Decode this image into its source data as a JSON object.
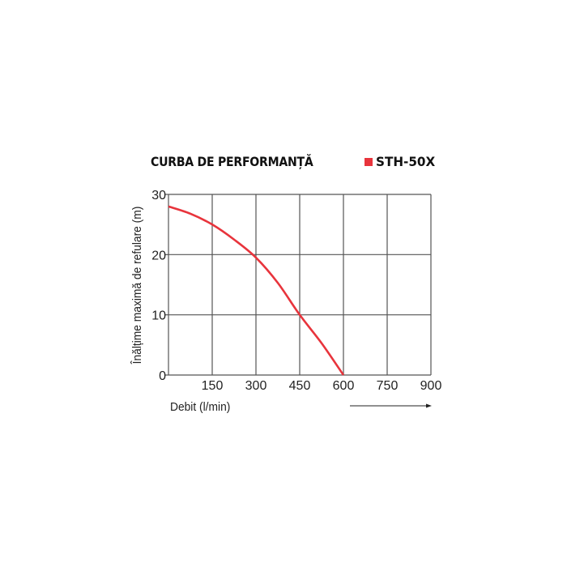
{
  "title": "CURBA DE PERFORMANȚĂ",
  "legend": {
    "label": "STH-50X",
    "color": "#e8343c"
  },
  "chart_data": {
    "type": "line",
    "title": "CURBA DE PERFORMANȚĂ",
    "xlabel": "Debit (l/min)",
    "ylabel": "Înălțime maximă de refulare (m)",
    "xlim": [
      0,
      900
    ],
    "ylim": [
      0,
      30
    ],
    "xticks": [
      150,
      300,
      450,
      600,
      750,
      900
    ],
    "yticks": [
      0,
      10,
      20,
      30
    ],
    "grid": true,
    "legend_position": "top-right",
    "series": [
      {
        "name": "STH-50X",
        "color": "#e8343c",
        "x": [
          0,
          75,
          150,
          225,
          300,
          375,
          450,
          525,
          600
        ],
        "y": [
          28,
          26.8,
          25,
          22.5,
          19.5,
          15.3,
          10,
          5.3,
          0
        ]
      }
    ]
  },
  "axis": {
    "xlabel": "Debit (l/min)",
    "ylabel": "Înălțime maximă de refulare (m)",
    "xtick_labels": [
      "150",
      "300",
      "450",
      "600",
      "750",
      "900"
    ],
    "ytick_labels": [
      "0",
      "10",
      "20",
      "30"
    ]
  }
}
